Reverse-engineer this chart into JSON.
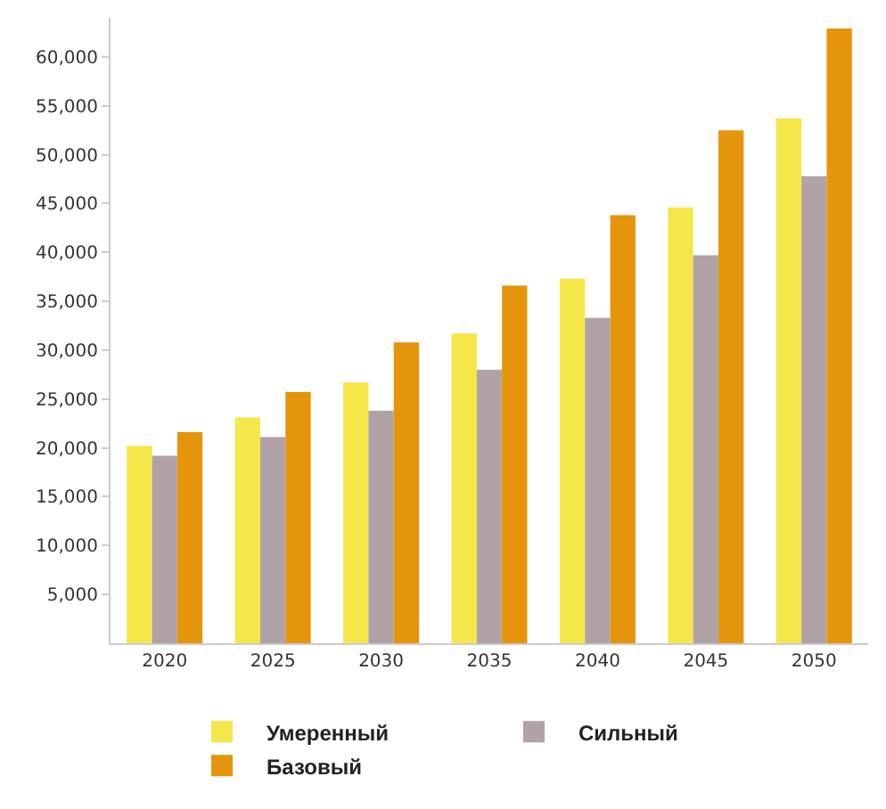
{
  "chart_data": {
    "type": "bar",
    "categories": [
      "2020",
      "2025",
      "2030",
      "2035",
      "2040",
      "2045",
      "2050"
    ],
    "series": [
      {
        "name": "Умеренный",
        "color": "#f5e64a",
        "values": [
          20200,
          23100,
          26700,
          31700,
          37300,
          44600,
          53700
        ]
      },
      {
        "name": "Сильный",
        "color": "#b0a2a6",
        "values": [
          19200,
          21100,
          23800,
          28000,
          33300,
          39700,
          47800
        ]
      },
      {
        "name": "Базовый",
        "color": "#e5950c",
        "values": [
          21600,
          25700,
          30800,
          36600,
          43800,
          52500,
          62900
        ]
      }
    ],
    "ylim": [
      0,
      64000
    ],
    "yticks": [
      {
        "value": 5000,
        "label": "5,000"
      },
      {
        "value": 10000,
        "label": "10,000"
      },
      {
        "value": 15000,
        "label": "15,000"
      },
      {
        "value": 20000,
        "label": "20,000"
      },
      {
        "value": 25000,
        "label": "25,000"
      },
      {
        "value": 30000,
        "label": "30,000"
      },
      {
        "value": 35000,
        "label": "35,000"
      },
      {
        "value": 40000,
        "label": "40,000"
      },
      {
        "value": 45000,
        "label": "45,000"
      },
      {
        "value": 50000,
        "label": "50,000"
      },
      {
        "value": 55000,
        "label": "55,000"
      },
      {
        "value": 60000,
        "label": "60,000"
      }
    ],
    "grid": false,
    "legend": "bottom"
  }
}
